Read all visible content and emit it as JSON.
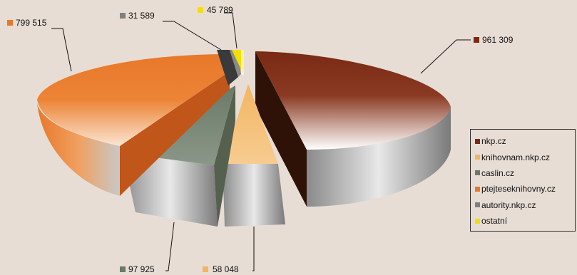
{
  "chart_data": {
    "type": "pie",
    "title": "",
    "categories": [
      "nkp.cz",
      "knihovnam.nkp.cz",
      "caslin.cz",
      "ptejteseknihovny.cz",
      "autority.nkp.cz",
      "ostatní"
    ],
    "values": [
      961309,
      58048,
      97925,
      799515,
      31589,
      45789
    ],
    "value_labels": [
      "961 309",
      "58 048",
      "97 925",
      "799 515",
      "31 589",
      "45 789"
    ],
    "colors": [
      "#7a2a14",
      "#f3b563",
      "#6b7a68",
      "#e8782a",
      "#808080",
      "#f2e000"
    ],
    "exploded": true,
    "style": "3d",
    "legend_position": "right"
  }
}
